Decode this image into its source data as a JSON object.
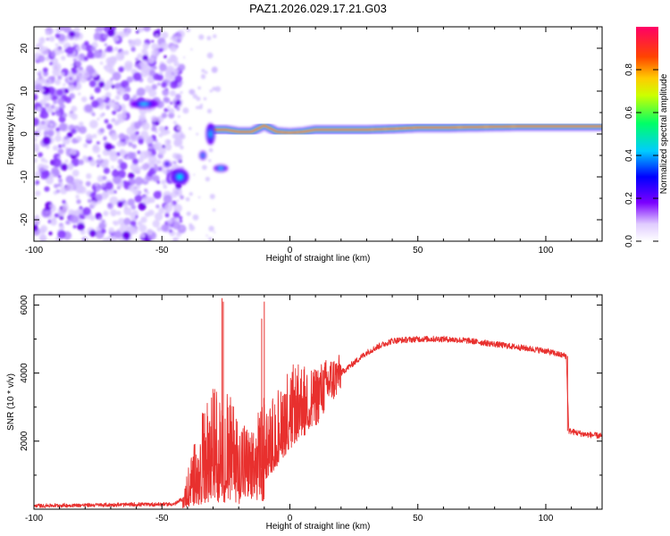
{
  "title": "PAZ1.2026.029.17.21.G03",
  "chart_data": [
    {
      "type": "heatmap",
      "name": "spectrogram",
      "xlabel": "Height of straight line (km)",
      "ylabel": "Frequency (Hz)",
      "xlim": [
        -100,
        122
      ],
      "ylim": [
        -25,
        25
      ],
      "xticks": [
        -100,
        -50,
        0,
        50,
        100
      ],
      "yticks": [
        -20,
        -10,
        0,
        10,
        20
      ],
      "colorbar": {
        "label": "Normalized spectral amplitude",
        "range": [
          0,
          1
        ],
        "ticks": [
          "0.0",
          "0.2",
          "0.4",
          "0.6",
          "0.8"
        ],
        "stops": [
          "#ffffff",
          "#7b00ff",
          "#0000ff",
          "#00ccff",
          "#00ff66",
          "#ffff00",
          "#ff8800",
          "#ff0000",
          "#ff0088"
        ]
      },
      "features": {
        "noise_region_x": [
          -100,
          -42
        ],
        "main_line": {
          "x": [
            -40,
            -35,
            -30,
            -25,
            -20,
            -15,
            -10,
            -5,
            0,
            5,
            10,
            20,
            30,
            40,
            50,
            60,
            70,
            80,
            90,
            100,
            110,
            122
          ],
          "freq": [
            -10,
            -5,
            1,
            1,
            0.5,
            0.5,
            2,
            0.5,
            0.3,
            0.5,
            1,
            1,
            1,
            1.2,
            1.5,
            1.5,
            1.6,
            1.7,
            1.8,
            1.8,
            1.8,
            1.8
          ]
        },
        "blobs": [
          {
            "x": -57,
            "f": 7
          },
          {
            "x": -42,
            "f": -10
          },
          {
            "x": -27,
            "f": -8
          },
          {
            "x": -30,
            "f": 2
          }
        ]
      }
    },
    {
      "type": "line",
      "name": "snr",
      "xlabel": "Height of straight line (km)",
      "ylabel": "SNR (10 * v/v)",
      "xlim": [
        -100,
        122
      ],
      "ylim": [
        0,
        6300
      ],
      "xticks": [
        -100,
        -50,
        0,
        50,
        100
      ],
      "yticks": [
        2000,
        4000,
        6000
      ],
      "color": "#e8302e",
      "profile": {
        "x": [
          -100,
          -45,
          -42,
          -40,
          -35,
          -30,
          -25,
          -20,
          -15,
          -10,
          -5,
          0,
          5,
          10,
          15,
          20,
          25,
          30,
          35,
          40,
          50,
          60,
          70,
          80,
          90,
          100,
          105,
          108,
          109,
          115,
          122
        ],
        "y": [
          100,
          150,
          300,
          600,
          1400,
          1900,
          1900,
          1500,
          1200,
          1800,
          2400,
          3000,
          3200,
          3300,
          3700,
          4000,
          4300,
          4600,
          4800,
          4950,
          5000,
          5000,
          4950,
          4850,
          4750,
          4650,
          4550,
          4500,
          2300,
          2200,
          2150
        ]
      },
      "spikes": [
        {
          "x": -26.5,
          "y": 6200
        },
        {
          "x": -26,
          "y": 6100
        },
        {
          "x": -10,
          "y": 6100
        },
        {
          "x": -11,
          "y": 5600
        }
      ]
    }
  ]
}
